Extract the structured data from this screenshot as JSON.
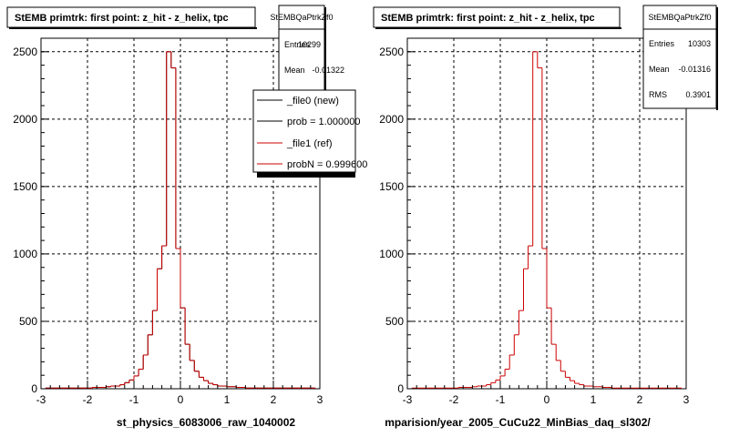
{
  "chart_data": [
    {
      "type": "histogram",
      "title": "StEMB primtrk: first point: z_hit - z_helix, tpc",
      "xlabel": "st_physics_6083006_raw_1040002",
      "xlim": [
        -3,
        3
      ],
      "ylim": [
        0,
        2600
      ],
      "xticks": [
        "-3",
        "-2",
        "-1",
        "0",
        "1",
        "2",
        "3"
      ],
      "yticks": [
        "0",
        "500",
        "1000",
        "1500",
        "2000",
        "2500"
      ],
      "grid": true,
      "stats": {
        "name": "StEMBQaPtrkZf0",
        "rows": [
          {
            "label": "Entries",
            "value": "10299"
          },
          {
            "label": "Mean",
            "value": "-0.01322"
          }
        ]
      },
      "legend": [
        {
          "label": "_file0 (new)",
          "color": "#000000"
        },
        {
          "label": "prob = 1.000000",
          "color": "#000000"
        },
        {
          "label": "_file1 (ref)",
          "color": "#cc0000"
        },
        {
          "label": "probN = 0.999600",
          "color": "#cc0000"
        }
      ],
      "bin_width": 0.1,
      "x_start": -2.9,
      "values": [
        5,
        5,
        5,
        5,
        5,
        5,
        5,
        5,
        5,
        5,
        10,
        10,
        10,
        15,
        20,
        20,
        30,
        45,
        65,
        95,
        145,
        250,
        400,
        580,
        890,
        1060,
        2500,
        2380,
        1040,
        600,
        330,
        210,
        130,
        85,
        60,
        40,
        30,
        20,
        20,
        15,
        15,
        10,
        10,
        5,
        5,
        5,
        5,
        5,
        5,
        5,
        5,
        5,
        5,
        5,
        5,
        5,
        5,
        5
      ],
      "series": [
        {
          "name": "_file0 (new)",
          "color": "#000000"
        },
        {
          "name": "_file1 (ref)",
          "color": "#cc0000"
        }
      ]
    },
    {
      "type": "histogram",
      "title": "StEMB primtrk: first point: z_hit - z_helix, tpc",
      "xlabel": "mparision/year_2005_CuCu22_MinBias_daq_sl302/",
      "xlim": [
        -3,
        3
      ],
      "ylim": [
        0,
        2600
      ],
      "xticks": [
        "-3",
        "-2",
        "-1",
        "0",
        "1",
        "2",
        "3"
      ],
      "yticks": [
        "0",
        "500",
        "1000",
        "1500",
        "2000",
        "2500"
      ],
      "grid": true,
      "stats": {
        "name": "StEMBQaPtrkZf0",
        "rows": [
          {
            "label": "Entries",
            "value": "10303"
          },
          {
            "label": "Mean",
            "value": "-0.01316"
          },
          {
            "label": "RMS",
            "value": "0.3901"
          }
        ]
      },
      "bin_width": 0.1,
      "x_start": -2.9,
      "values": [
        5,
        5,
        5,
        5,
        5,
        5,
        5,
        5,
        5,
        5,
        10,
        10,
        10,
        15,
        20,
        20,
        30,
        45,
        65,
        95,
        145,
        250,
        400,
        580,
        890,
        1060,
        2500,
        2380,
        1040,
        600,
        330,
        210,
        130,
        85,
        60,
        40,
        30,
        20,
        20,
        15,
        15,
        10,
        10,
        5,
        5,
        5,
        5,
        5,
        5,
        5,
        5,
        5,
        5,
        5,
        5,
        5,
        5,
        5
      ],
      "series": [
        {
          "name": "",
          "color": "#cc0000"
        }
      ]
    }
  ]
}
